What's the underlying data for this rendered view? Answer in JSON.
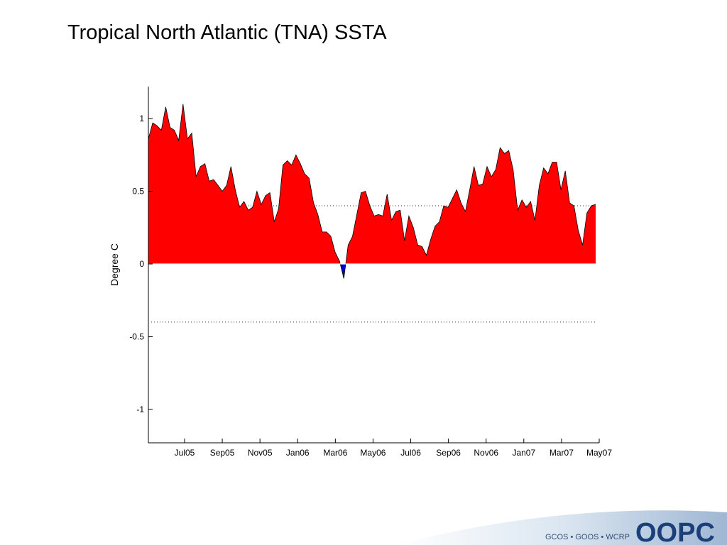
{
  "chart_data": {
    "type": "area",
    "title": "Tropical North Atlantic (TNA) SSTA",
    "y_label": "Degree C",
    "x": [
      4.08,
      4.31,
      4.54,
      4.77,
      5.0,
      5.23,
      5.46,
      5.69,
      5.92,
      6.15,
      6.38,
      6.61,
      6.84,
      7.08,
      7.31,
      7.54,
      7.77,
      8.0,
      8.23,
      8.46,
      8.69,
      8.92,
      9.15,
      9.38,
      9.61,
      9.84,
      10.07,
      10.3,
      10.53,
      10.76,
      10.99,
      11.22,
      11.45,
      11.68,
      11.91,
      12.14,
      12.37,
      12.61,
      12.84,
      13.07,
      13.3,
      13.53,
      13.76,
      13.99,
      14.22,
      14.45,
      14.68,
      14.91,
      15.14,
      15.37,
      15.6,
      15.83,
      16.06,
      16.29,
      16.52,
      16.75,
      16.98,
      17.21,
      17.44,
      17.67,
      17.9,
      18.14,
      18.37,
      18.6,
      18.83,
      19.06,
      19.29,
      19.52,
      19.75,
      19.98,
      20.21,
      20.44,
      20.67,
      20.9,
      21.13,
      21.36,
      21.59,
      21.82,
      22.05,
      22.28,
      22.51,
      22.74,
      22.97,
      23.2,
      23.43,
      23.67,
      23.9,
      24.13,
      24.36,
      24.59,
      24.82,
      25.05,
      25.28,
      25.51,
      25.74,
      25.97,
      26.2,
      26.43,
      26.66,
      26.89,
      27.12,
      27.35,
      27.58,
      27.81
    ],
    "values": [
      0.86,
      0.97,
      0.95,
      0.92,
      1.08,
      0.94,
      0.92,
      0.85,
      1.1,
      0.86,
      0.9,
      0.6,
      0.67,
      0.69,
      0.57,
      0.58,
      0.54,
      0.5,
      0.54,
      0.67,
      0.51,
      0.39,
      0.43,
      0.37,
      0.39,
      0.5,
      0.41,
      0.47,
      0.49,
      0.29,
      0.38,
      0.68,
      0.71,
      0.68,
      0.75,
      0.69,
      0.62,
      0.59,
      0.42,
      0.34,
      0.22,
      0.22,
      0.19,
      0.08,
      0.02,
      -0.1,
      0.13,
      0.19,
      0.34,
      0.49,
      0.5,
      0.4,
      0.33,
      0.34,
      0.33,
      0.48,
      0.3,
      0.36,
      0.37,
      0.16,
      0.33,
      0.25,
      0.13,
      0.12,
      0.06,
      0.17,
      0.26,
      0.29,
      0.4,
      0.39,
      0.45,
      0.51,
      0.42,
      0.36,
      0.51,
      0.67,
      0.54,
      0.55,
      0.67,
      0.6,
      0.65,
      0.8,
      0.76,
      0.78,
      0.65,
      0.37,
      0.44,
      0.39,
      0.43,
      0.3,
      0.54,
      0.66,
      0.62,
      0.7,
      0.7,
      0.51,
      0.64,
      0.42,
      0.4,
      0.23,
      0.13,
      0.35,
      0.4,
      0.41
    ],
    "positive_color": "#ff0000",
    "negative_color": "#0000cc",
    "xlim": [
      4.08,
      28
    ],
    "xticks": [
      {
        "value": 6,
        "label": "Jul05"
      },
      {
        "value": 8,
        "label": "Sep05"
      },
      {
        "value": 10,
        "label": "Nov05"
      },
      {
        "value": 12,
        "label": "Jan06"
      },
      {
        "value": 14,
        "label": "Mar06"
      },
      {
        "value": 16,
        "label": "May06"
      },
      {
        "value": 18,
        "label": "Jul06"
      },
      {
        "value": 20,
        "label": "Sep06"
      },
      {
        "value": 22,
        "label": "Nov06"
      },
      {
        "value": 24,
        "label": "Jan07"
      },
      {
        "value": 26,
        "label": "Mar07"
      },
      {
        "value": 28,
        "label": "May07"
      }
    ],
    "ylim": [
      -1.23,
      1.22
    ],
    "yticks": [
      -1,
      -0.5,
      0,
      0.5,
      1
    ],
    "reference_lines": [
      0.4,
      -0.4
    ],
    "grid": false
  },
  "footer": {
    "partners": "GCOS • GOOS • WCRP",
    "logo": "OOPC"
  }
}
